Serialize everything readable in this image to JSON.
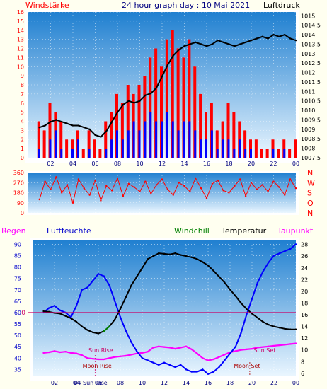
{
  "header": {
    "left_label": "Windstärke",
    "title": "24 hour graph day : 10 Mai 2021",
    "right_label": "Luftdruck"
  },
  "colors": {
    "background": "#fffff0",
    "frame": "#ffffff",
    "gradient_top": "#1f7fd0",
    "gradient_bottom": "#eaf6ff",
    "wind": "#ff0000",
    "gust": "#0000ff",
    "pressure": "#000000",
    "humidity": "#0000ff",
    "temperature": "#000000",
    "dewpoint": "#ff00ff",
    "windchill": "#008000",
    "zero_line": "#cc0066",
    "sun_text": "#cc0066",
    "moon_text": "#aa0000"
  },
  "chart_data": [
    {
      "type": "line",
      "panel": "wind_pressure",
      "x": [
        1.0,
        1.5,
        2.0,
        2.5,
        3.0,
        3.5,
        4.0,
        4.5,
        5.0,
        5.5,
        6.0,
        6.5,
        7.0,
        7.5,
        8.0,
        8.5,
        9.0,
        9.5,
        10.0,
        10.5,
        11.0,
        11.5,
        12.0,
        12.5,
        13.0,
        13.5,
        14.0,
        14.5,
        15.0,
        15.5,
        16.0,
        16.5,
        17.0,
        17.5,
        18.0,
        18.5,
        19.0,
        19.5,
        20.0,
        20.5,
        21.0,
        21.5,
        22.0,
        22.5,
        23.0,
        23.5,
        24.0
      ],
      "x_ticks": [
        "02",
        "04",
        "06",
        "08",
        "10",
        "12",
        "14",
        "16",
        "18",
        "20",
        "22",
        "00"
      ],
      "left_axis": {
        "title": "Windstärke",
        "ticks": [
          0,
          1,
          2,
          3,
          4,
          5,
          6,
          7,
          8,
          9,
          10,
          11,
          12,
          13,
          14,
          15,
          16
        ],
        "ylim": [
          0,
          16
        ]
      },
      "right_axis": {
        "title": "Luftdruck",
        "ticks": [
          "1007.5",
          "1008",
          "1008.5",
          "1009",
          "1009.5",
          "1010",
          "1010.5",
          "1011",
          "1011.5",
          "1012",
          "1012.5",
          "1013",
          "1013.5",
          "1014",
          "1014.5",
          "1015"
        ],
        "ylim": [
          1007.5,
          1015.2
        ]
      },
      "series": [
        {
          "values": [
            4,
            3,
            6,
            5,
            4,
            2,
            2,
            3,
            1,
            3,
            2,
            1,
            4,
            5,
            7,
            6,
            8,
            7,
            8,
            9,
            11,
            12,
            10,
            13,
            14,
            12,
            11,
            13,
            10,
            7,
            5,
            6,
            3,
            4,
            6,
            5,
            4,
            3,
            2,
            2,
            1,
            1,
            2,
            1,
            2,
            1,
            2
          ]
        },
        {
          "values": [
            1,
            0,
            2,
            3,
            1,
            0,
            1,
            2,
            0,
            1,
            0,
            0,
            1,
            2,
            3,
            2,
            3,
            4,
            3,
            4,
            5,
            4,
            4,
            5,
            4,
            3,
            4,
            4,
            3,
            2,
            2,
            3,
            1,
            2,
            2,
            1,
            2,
            1,
            1,
            0,
            0,
            0,
            1,
            0,
            1,
            0,
            0
          ]
        },
        {
          "values": [
            1009.1,
            1009.2,
            1009.4,
            1009.5,
            1009.4,
            1009.3,
            1009.2,
            1009.2,
            1009.1,
            1009.0,
            1008.7,
            1008.6,
            1008.9,
            1009.4,
            1009.9,
            1010.3,
            1010.5,
            1010.4,
            1010.5,
            1010.8,
            1010.9,
            1011.2,
            1011.8,
            1012.4,
            1012.9,
            1013.2,
            1013.4,
            1013.5,
            1013.6,
            1013.5,
            1013.4,
            1013.5,
            1013.7,
            1013.6,
            1013.5,
            1013.4,
            1013.5,
            1013.6,
            1013.7,
            1013.8,
            1013.9,
            1013.8,
            1014.0,
            1013.9,
            1014.0,
            1013.8,
            1013.7
          ]
        }
      ],
      "grid": true
    },
    {
      "type": "scatter",
      "panel": "wind_direction",
      "x_ticks": [
        "02",
        "04",
        "06",
        "08",
        "10",
        "12",
        "14",
        "16",
        "18",
        "20",
        "22",
        "00"
      ],
      "left_axis": {
        "ticks": [
          0,
          90,
          180,
          270,
          360
        ],
        "ylim": [
          0,
          360
        ]
      },
      "right_axis": {
        "ticks": [
          "N",
          "W",
          "S",
          "O",
          "N"
        ]
      },
      "series": [
        {
          "x": [
            1.0,
            1.5,
            2.0,
            2.5,
            3.0,
            3.5,
            4.0,
            4.5,
            5.0,
            5.5,
            6.0,
            6.5,
            7.0,
            7.5,
            8.0,
            8.5,
            9.0,
            9.5,
            10.0,
            10.5,
            11.0,
            11.5,
            12.0,
            12.5,
            13.0,
            13.5,
            14.0,
            14.5,
            15.0,
            15.5,
            16.0,
            16.5,
            17.0,
            17.5,
            18.0,
            18.5,
            19.0,
            19.5,
            20.0,
            20.5,
            21.0,
            21.5,
            22.0,
            22.5,
            23.0,
            23.5,
            24.0
          ],
          "values": [
            120,
            280,
            210,
            320,
            180,
            250,
            90,
            300,
            220,
            160,
            290,
            110,
            240,
            200,
            310,
            150,
            260,
            230,
            190,
            280,
            170,
            250,
            300,
            210,
            160,
            270,
            240,
            190,
            310,
            220,
            130,
            260,
            290,
            200,
            180,
            240,
            300,
            150,
            270,
            210,
            250,
            190,
            280,
            230,
            160,
            300,
            220
          ]
        }
      ],
      "grid": true
    },
    {
      "type": "line",
      "panel": "temperature_humidity",
      "x": [
        1.0,
        1.5,
        2.0,
        2.5,
        3.0,
        3.5,
        4.0,
        4.5,
        5.0,
        5.5,
        6.0,
        6.5,
        7.0,
        7.5,
        8.0,
        8.5,
        9.0,
        9.5,
        10.0,
        10.5,
        11.0,
        11.5,
        12.0,
        12.5,
        13.0,
        13.5,
        14.0,
        14.5,
        15.0,
        15.5,
        16.0,
        16.5,
        17.0,
        17.5,
        18.0,
        18.5,
        19.0,
        19.5,
        20.0,
        20.5,
        21.0,
        21.5,
        22.0,
        22.5,
        23.0,
        23.5,
        24.0
      ],
      "x_ticks": [
        "02",
        "04",
        "06",
        "08",
        "10",
        "12",
        "14",
        "16",
        "18",
        "20",
        "22",
        "00"
      ],
      "legend": [
        "Regen",
        "Luftfeuchte",
        "Windchill",
        "Temperatur",
        "Taupunkt"
      ],
      "left_axis": {
        "title": "Regen",
        "ticks": [
          35,
          40,
          45,
          50,
          55,
          60,
          65,
          70,
          75,
          80,
          85,
          90
        ],
        "ylim": [
          32,
          92
        ]
      },
      "right_axis": {
        "ticks": [
          6,
          8,
          10,
          12,
          14,
          16,
          18,
          20,
          22,
          24,
          26,
          28
        ],
        "ylim": [
          5.5,
          28.8
        ]
      },
      "series": [
        {
          "name": "Luftfeuchte",
          "values": [
            60,
            62,
            63,
            61,
            60,
            58,
            63,
            70,
            71,
            74,
            77,
            76,
            72,
            65,
            58,
            52,
            47,
            43,
            40,
            39,
            38,
            37,
            38,
            37,
            36,
            37,
            35,
            34,
            34,
            35,
            33,
            34,
            36,
            39,
            42,
            45,
            51,
            59,
            66,
            73,
            78,
            82,
            85,
            86,
            87,
            88,
            90
          ]
        },
        {
          "name": "Temperatur",
          "values": [
            16.6,
            16.5,
            16.3,
            16.2,
            15.8,
            15.4,
            14.8,
            14.0,
            13.4,
            13.0,
            12.8,
            13.2,
            14.0,
            15.2,
            17.0,
            19.0,
            21.0,
            22.5,
            24.0,
            25.5,
            26.0,
            26.5,
            26.4,
            26.3,
            26.5,
            26.2,
            26.0,
            25.8,
            25.5,
            25.0,
            24.4,
            23.5,
            22.5,
            21.5,
            20.3,
            19.2,
            18.0,
            17.0,
            16.2,
            15.5,
            14.8,
            14.3,
            14.0,
            13.8,
            13.6,
            13.5,
            13.5
          ]
        },
        {
          "name": "Taupunkt",
          "values": [
            9.5,
            9.6,
            9.8,
            9.6,
            9.7,
            9.5,
            9.4,
            9.1,
            8.6,
            8.5,
            8.4,
            8.4,
            8.6,
            8.8,
            8.9,
            9.0,
            9.2,
            9.4,
            9.5,
            9.7,
            10.4,
            10.6,
            10.5,
            10.4,
            10.2,
            10.4,
            10.6,
            10.1,
            9.4,
            8.6,
            8.2,
            8.4,
            8.8,
            9.2,
            9.6,
            9.8,
            10.0,
            10.1,
            10.2,
            10.4,
            10.5,
            10.6,
            10.7,
            10.8,
            10.9,
            11.0,
            11.1
          ]
        },
        {
          "name": "Windchill",
          "values": [
            null,
            null,
            null,
            null,
            null,
            null,
            null,
            null,
            null,
            null,
            null,
            13.2,
            14.0,
            null,
            null,
            null,
            null,
            null,
            null,
            null,
            null,
            null,
            null,
            null,
            null,
            null,
            null,
            null,
            null,
            null,
            null,
            null,
            null,
            null,
            null,
            null,
            null,
            null,
            null,
            null,
            null,
            null,
            null,
            null,
            null,
            null,
            null
          ]
        }
      ],
      "annotations": [
        {
          "text": "0",
          "kind": "zero-line-label"
        },
        {
          "text": "Sun Rise",
          "x": 5.7
        },
        {
          "text": "Moon Rise",
          "x": 5.5
        },
        {
          "text": "Sun Set",
          "x": 20.9
        },
        {
          "text": "Moon Set",
          "x": 19.8
        },
        {
          "text": "04 Sun Rise",
          "kind": "axis-overlap"
        }
      ],
      "grid": true
    }
  ]
}
